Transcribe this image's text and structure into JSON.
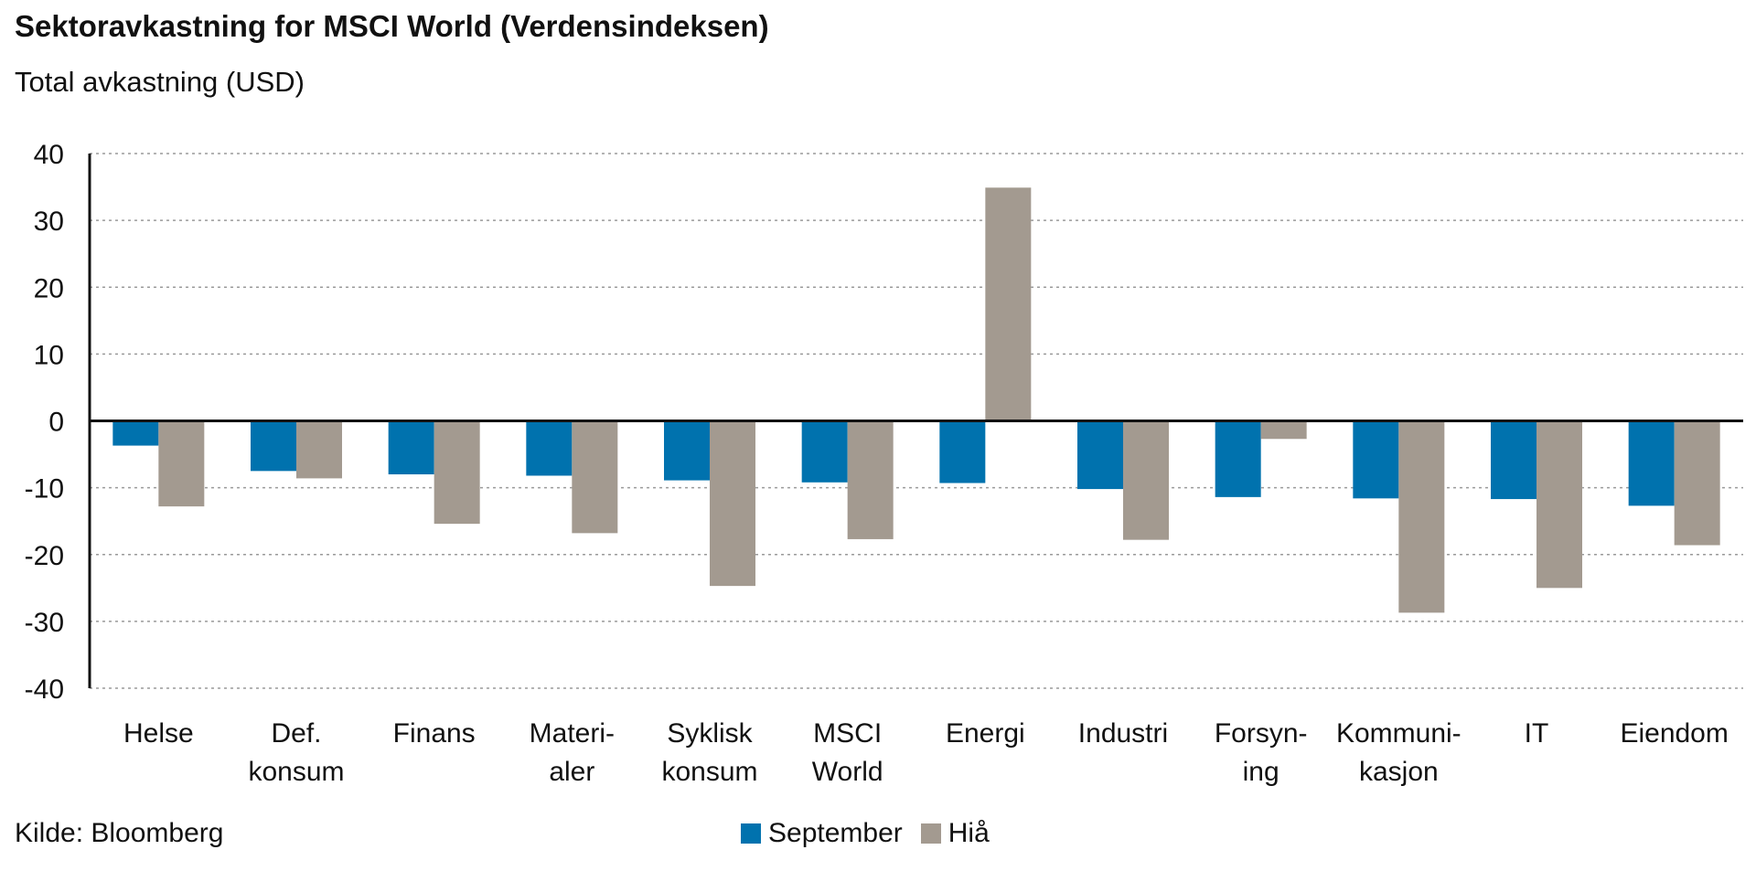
{
  "title": "Sektoravkastning for MSCI World (Verdensindeksen)",
  "subtitle": "Total avkastning (USD)",
  "source": "Kilde: Bloomberg",
  "colors": {
    "september": "#0072ae",
    "hia": "#a39a90",
    "axis": "#111111",
    "grid": "#9a9a9a"
  },
  "legend": {
    "september_label": "September",
    "hia_label": "Hiå"
  },
  "chart_data": {
    "type": "bar",
    "categories": [
      [
        "Helse"
      ],
      [
        "Def.",
        "konsum"
      ],
      [
        "Finans"
      ],
      [
        "Materi-",
        "aler"
      ],
      [
        "Syklisk",
        "konsum"
      ],
      [
        "MSCI",
        "World"
      ],
      [
        "Energi"
      ],
      [
        "Industri"
      ],
      [
        "Forsyn-",
        "ing"
      ],
      [
        "Kommuni-",
        "kasjon"
      ],
      [
        "IT"
      ],
      [
        "Eiendom"
      ]
    ],
    "series": [
      {
        "name": "September",
        "color": "#0072ae",
        "values": [
          -3.7,
          -7.5,
          -8.0,
          -8.2,
          -8.9,
          -9.2,
          -9.3,
          -10.2,
          -11.4,
          -11.6,
          -11.7,
          -12.7
        ]
      },
      {
        "name": "Hiå",
        "color": "#a39a90",
        "values": [
          -12.8,
          -8.6,
          -15.4,
          -16.8,
          -24.7,
          -17.7,
          34.9,
          -17.8,
          -2.7,
          -28.7,
          -25.0,
          -18.6
        ]
      }
    ],
    "xlabel": "",
    "ylabel": "",
    "ylim": [
      -40,
      40
    ],
    "yticks": [
      40,
      30,
      20,
      10,
      0,
      -10,
      -20,
      -30,
      -40
    ],
    "grid": true,
    "grid_style": "dashed horizontal",
    "legend_position": "bottom-center"
  }
}
